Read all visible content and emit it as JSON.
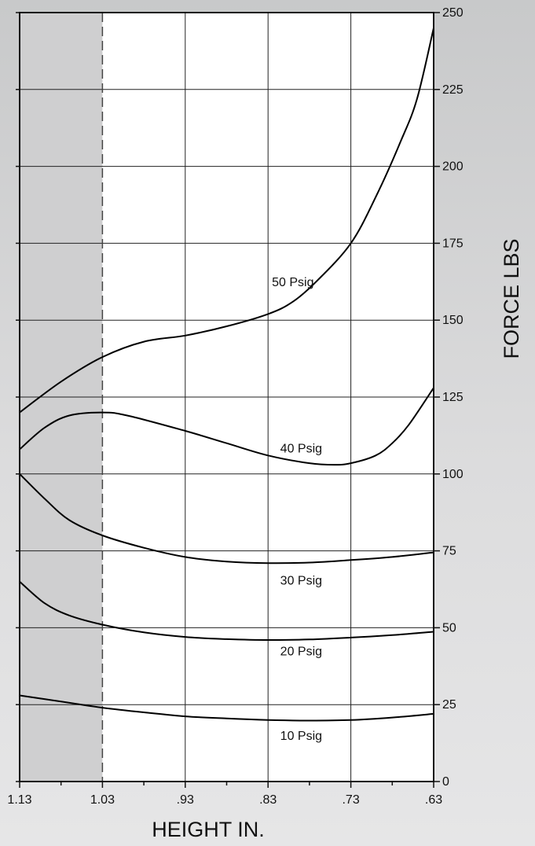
{
  "chart_data": {
    "type": "line",
    "title": "",
    "xlabel": "HEIGHT IN.",
    "ylabel": "FORCE LBS",
    "x_reversed": true,
    "xlim": [
      1.13,
      0.63
    ],
    "ylim": [
      0,
      250
    ],
    "x_ticks": [
      1.13,
      1.03,
      0.93,
      0.83,
      0.73,
      0.63
    ],
    "x_tick_labels": [
      "1.13",
      "1.03",
      ".93",
      ".83",
      ".73",
      ".63"
    ],
    "y_ticks": [
      0,
      25,
      50,
      75,
      100,
      125,
      150,
      175,
      200,
      225,
      250
    ],
    "y_tick_labels": [
      "0",
      "25",
      "50",
      "75",
      "100",
      "125",
      "150",
      "175",
      "200",
      "225",
      "250"
    ],
    "y_axis_side": "right",
    "grid": true,
    "shaded_region": {
      "x_from": 1.13,
      "x_to": 1.03,
      "color": "#cfcfd0"
    },
    "series": [
      {
        "name": "50 Psig",
        "x": [
          1.13,
          1.08,
          1.03,
          0.98,
          0.93,
          0.88,
          0.83,
          0.8,
          0.77,
          0.73,
          0.7,
          0.67,
          0.65,
          0.63
        ],
        "y": [
          120,
          130,
          138,
          143,
          145,
          148,
          152,
          156,
          163,
          175,
          190,
          208,
          222,
          245
        ]
      },
      {
        "name": "40 Psig",
        "x": [
          1.13,
          1.1,
          1.07,
          1.03,
          1.0,
          0.93,
          0.88,
          0.83,
          0.78,
          0.75,
          0.73,
          0.7,
          0.68,
          0.66,
          0.63
        ],
        "y": [
          108,
          115,
          119,
          120,
          119,
          114,
          110,
          106,
          103.5,
          103,
          103.5,
          106,
          110,
          116,
          128
        ]
      },
      {
        "name": "30 Psig",
        "x": [
          1.13,
          1.1,
          1.07,
          1.03,
          0.98,
          0.93,
          0.88,
          0.83,
          0.78,
          0.73,
          0.68,
          0.63
        ],
        "y": [
          100,
          92,
          85,
          80,
          76,
          73,
          71.5,
          71,
          71.2,
          72,
          73,
          74.5
        ]
      },
      {
        "name": "20 Psig",
        "x": [
          1.13,
          1.1,
          1.07,
          1.03,
          0.98,
          0.93,
          0.88,
          0.83,
          0.78,
          0.73,
          0.68,
          0.63
        ],
        "y": [
          65,
          58,
          54,
          51,
          48.5,
          47,
          46.3,
          46,
          46.2,
          46.8,
          47.6,
          48.7
        ]
      },
      {
        "name": "10 Psig",
        "x": [
          1.13,
          1.08,
          1.03,
          0.98,
          0.93,
          0.88,
          0.83,
          0.78,
          0.73,
          0.68,
          0.63
        ],
        "y": [
          28,
          26,
          24,
          22.5,
          21.2,
          20.5,
          20,
          19.8,
          20,
          20.8,
          22
        ]
      }
    ],
    "series_label_positions": [
      {
        "name": "50 Psig",
        "x": 0.8,
        "y": 161
      },
      {
        "name": "40 Psig",
        "x": 0.79,
        "y": 107
      },
      {
        "name": "30 Psig",
        "x": 0.79,
        "y": 64
      },
      {
        "name": "20 Psig",
        "x": 0.79,
        "y": 41
      },
      {
        "name": "10 Psig",
        "x": 0.79,
        "y": 13.5
      }
    ]
  }
}
